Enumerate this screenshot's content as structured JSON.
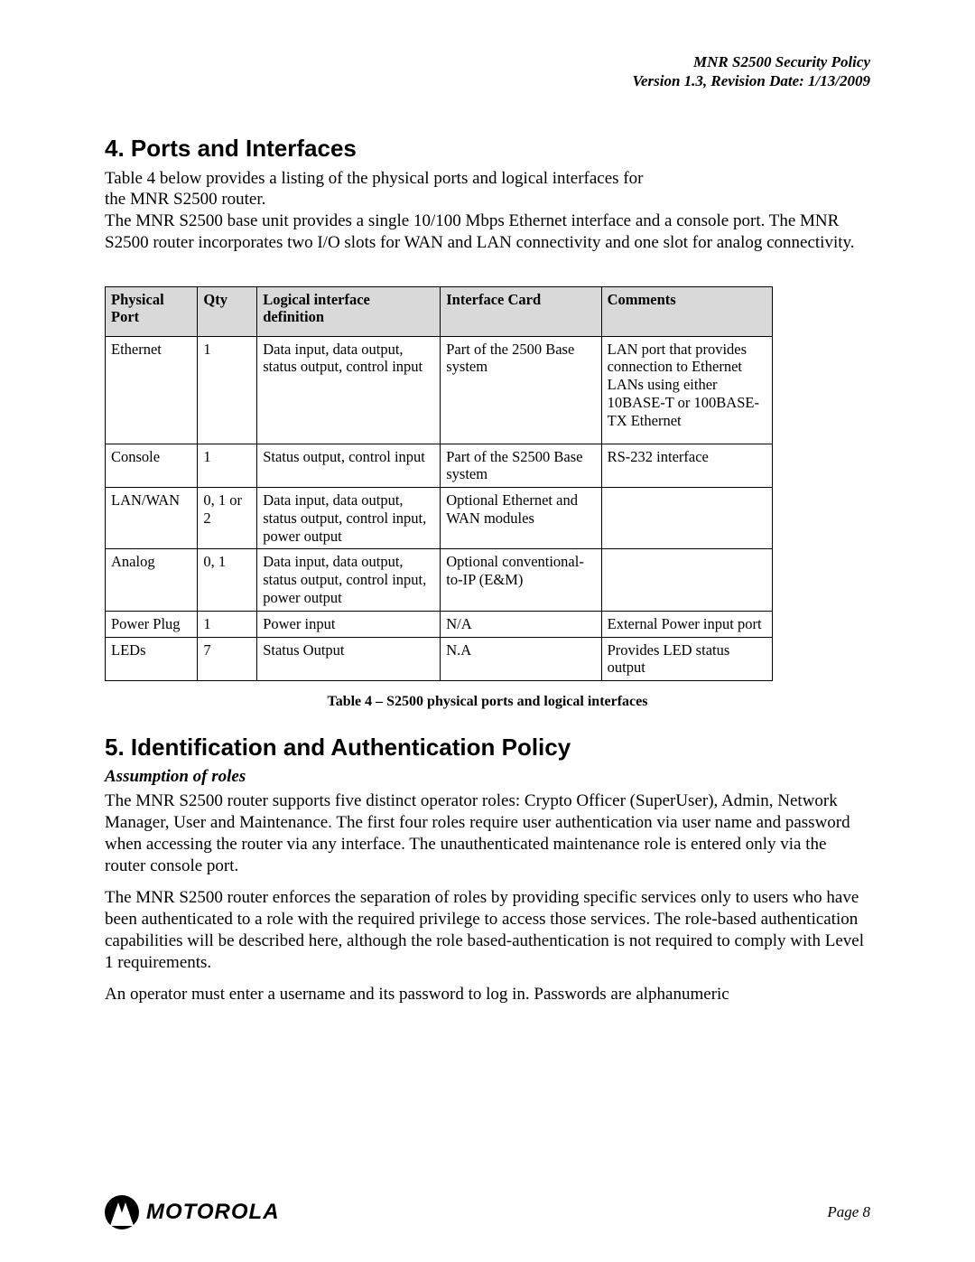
{
  "header": {
    "title": "MNR S2500 Security Policy",
    "version_line": "Version 1.3, Revision Date: 1/13/2009"
  },
  "section4": {
    "heading": "4. Ports and Interfaces",
    "para1_l1": "Table 4 below provides a listing of the physical ports and logical interfaces for",
    "para1_l2": "the MNR S2500 router.",
    "para2": "The MNR S2500 base unit provides a single 10/100 Mbps Ethernet interface and a console port. The MNR S2500 router incorporates two I/O slots for WAN and LAN connectivity and one slot for analog connectivity."
  },
  "table4": {
    "headers": {
      "port": "Physical Port",
      "qty": "Qty",
      "logic": "Logical interface definition",
      "ifcard": "Interface Card",
      "comments": "Comments"
    },
    "rows": [
      {
        "port": "Ethernet",
        "qty": "1",
        "logic": "Data input, data output, status output, control input",
        "ifcard": "Part of the 2500 Base system",
        "comments": "LAN port that provides connection to Ethernet LANs using either 10BASE-T or 100BASE-TX Ethernet"
      },
      {
        "port": "Console",
        "qty": "1",
        "logic": "Status output, control input",
        "ifcard": "Part of the S2500 Base system",
        "comments": "RS-232 interface"
      },
      {
        "port": "LAN/WAN",
        "qty": "0, 1 or 2",
        "logic": "Data input, data output, status output, control input, power output",
        "ifcard": "Optional Ethernet and WAN modules",
        "comments": ""
      },
      {
        "port": "Analog",
        "qty": "0, 1",
        "logic": "Data input, data output, status output, control input, power output",
        "ifcard": "Optional conventional-to-IP (E&M)",
        "comments": ""
      },
      {
        "port": "Power Plug",
        "qty": "1",
        "logic": "Power input",
        "ifcard": "N/A",
        "comments": "External Power input port"
      },
      {
        "port": "LEDs",
        "qty": "7",
        "logic": "Status Output",
        "ifcard": "N.A",
        "comments": "Provides LED status output"
      }
    ],
    "caption": "Table 4 – S2500 physical ports and logical interfaces"
  },
  "section5": {
    "heading": "5. Identification and Authentication Policy",
    "subhead": "Assumption of roles",
    "para1": "The MNR S2500 router supports five distinct operator roles: Crypto Officer (SuperUser), Admin, Network Manager, User and Maintenance. The first four roles require user authentication via user name and password when accessing the router via any interface. The unauthenticated maintenance role is entered only via the router console port.",
    "para2": "The MNR S2500 router enforces the separation of roles by providing specific services only to users who have been authenticated to a role with the required privilege to access those services. The role-based authentication capabilities will be described here, although the role based-authentication is not required to comply with Level 1 requirements.",
    "para3": "An operator must enter a username and its password to log in. Passwords are alphanumeric"
  },
  "footer": {
    "brand": "MOTOROLA",
    "page": "Page 8"
  }
}
